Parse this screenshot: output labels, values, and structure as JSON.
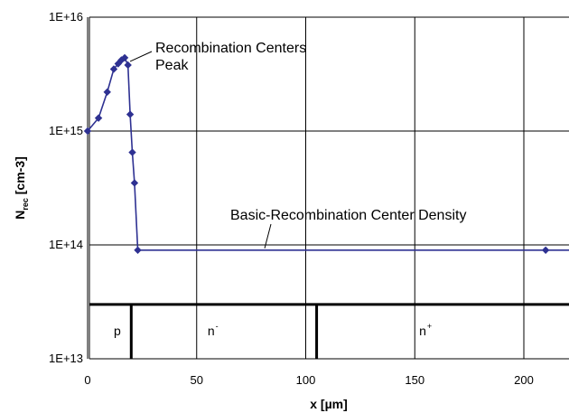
{
  "chart_data": {
    "type": "line",
    "title": "",
    "xlabel": "x [µm]",
    "ylabel": {
      "main": "N",
      "sub": "rec",
      "rest": " [cm-3]"
    },
    "xlim": [
      0,
      230
    ],
    "ylim": [
      10000000000000.0,
      1e+16
    ],
    "y_scale": "log",
    "grid": true,
    "x_ticks": [
      0,
      50,
      100,
      150,
      200
    ],
    "x_tick_labels": [
      "0",
      "50",
      "100",
      "150",
      "200"
    ],
    "y_ticks": [
      10000000000000.0,
      100000000000000.0,
      1000000000000000.0,
      1e+16
    ],
    "y_tick_labels": [
      "1E+13",
      "1E+14",
      "1E+15",
      "1E+16"
    ],
    "series": [
      {
        "color": "#2e3192",
        "x": [
          0,
          5,
          9,
          12,
          14,
          15.5,
          17,
          18.5,
          19.5,
          20.5,
          21.5,
          23,
          210,
          230
        ],
        "y": [
          1000000000000000.0,
          1300000000000000.0,
          2200000000000000.0,
          3500000000000000.0,
          3900000000000000.0,
          4200000000000000.0,
          4400000000000000.0,
          3800000000000000.0,
          1400000000000000.0,
          650000000000000.0,
          350000000000000.0,
          90000000000000.0,
          90000000000000.0,
          90000000000000.0
        ]
      }
    ],
    "annotations": [
      {
        "lines": [
          "Recombination Centers",
          "Peak"
        ],
        "x": 17,
        "y": 4400000000000000.0
      },
      {
        "lines": [
          "Basic-Recombination Center Density"
        ],
        "x": 82,
        "y": 90000000000000.0
      }
    ],
    "regions": {
      "line_y": 30000000000000.0,
      "boundaries": [
        20,
        105
      ],
      "labels": [
        {
          "text": "p",
          "sup": "",
          "x": 12
        },
        {
          "text": "n",
          "sup": "-",
          "x": 55
        },
        {
          "text": "n",
          "sup": "+",
          "x": 152
        }
      ]
    }
  }
}
